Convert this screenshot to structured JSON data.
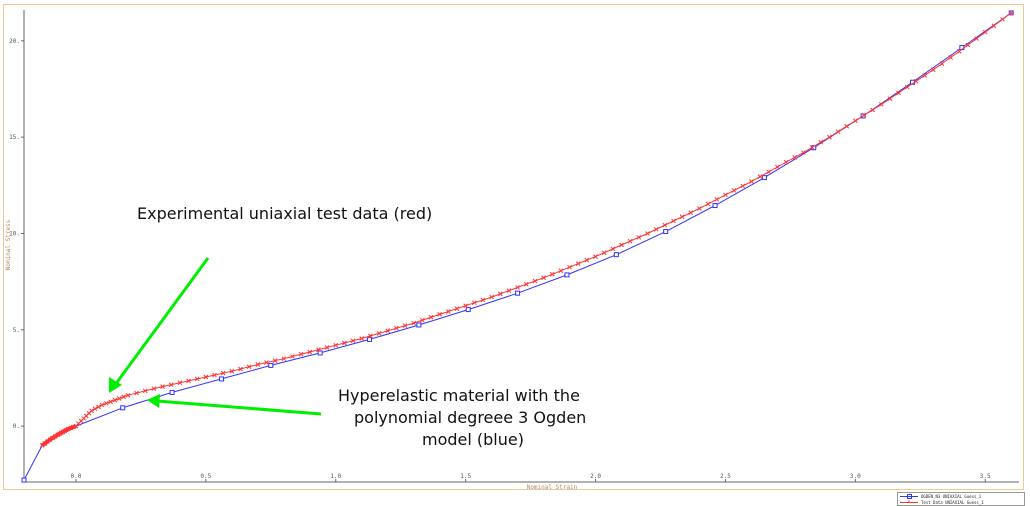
{
  "chart_data": {
    "type": "line",
    "xlabel": "Nominal Strain",
    "ylabel": "Nominal Stress",
    "xlim": [
      -0.2,
      3.63
    ],
    "ylim": [
      -2.9,
      21.6
    ],
    "x_ticks": [
      0.0,
      0.5,
      1.0,
      1.5,
      2.0,
      2.5,
      3.0,
      3.5
    ],
    "x_tick_labels": [
      "0.0",
      "0.5",
      "1.0",
      "1.5",
      "2.0",
      "2.5",
      "3.0",
      "3.5"
    ],
    "y_ticks": [
      0.0,
      5.0,
      10.0,
      15.0,
      20.0
    ],
    "y_tick_labels": [
      "0.",
      "5.",
      "10.",
      "15.",
      "20."
    ],
    "grid": false,
    "legend_position": "bottom-right",
    "series": [
      {
        "name": "OGDEN_N3 UNIAXIAL Guess_1",
        "color": "#3333ff",
        "marker": "square",
        "x": [
          -0.2,
          -0.13,
          -0.07,
          0.0,
          0.18,
          0.37,
          0.56,
          0.75,
          0.94,
          1.13,
          1.32,
          1.51,
          1.7,
          1.89,
          2.08,
          2.27,
          2.46,
          2.65,
          2.84,
          3.03,
          3.22,
          3.41,
          3.6
        ],
        "y": [
          -2.8,
          -1.0,
          -0.5,
          0.0,
          0.95,
          1.75,
          2.45,
          3.15,
          3.8,
          4.5,
          5.25,
          6.05,
          6.9,
          7.85,
          8.9,
          10.1,
          11.45,
          12.9,
          14.45,
          16.1,
          17.85,
          19.65,
          21.45
        ],
        "marker_x": [
          -0.2,
          0.18,
          0.37,
          0.56,
          0.75,
          0.94,
          1.13,
          1.32,
          1.51,
          1.7,
          1.89,
          2.08,
          2.27,
          2.46,
          2.65,
          2.84,
          3.03,
          3.22,
          3.41,
          3.6
        ],
        "marker_y": [
          -2.8,
          0.95,
          1.75,
          2.45,
          3.15,
          3.8,
          4.5,
          5.25,
          6.05,
          6.9,
          7.85,
          8.9,
          10.1,
          11.45,
          12.9,
          14.45,
          16.1,
          17.85,
          19.65,
          21.45
        ]
      },
      {
        "name": "Test Data UNIAXIAL Guess_1",
        "color": "#ff3333",
        "marker": "x",
        "x": [
          -0.13,
          -0.1,
          -0.07,
          -0.05,
          -0.03,
          0.0,
          0.03,
          0.06,
          0.1,
          0.15,
          0.2,
          0.3,
          0.4,
          0.5,
          0.6,
          0.7,
          0.8,
          0.9,
          1.0,
          1.1,
          1.2,
          1.3,
          1.4,
          1.5,
          1.6,
          1.7,
          1.8,
          1.9,
          2.0,
          2.1,
          2.2,
          2.3,
          2.4,
          2.5,
          2.6,
          2.7,
          2.8,
          2.9,
          3.0,
          3.1,
          3.2,
          3.3,
          3.4,
          3.5,
          3.6
        ],
        "y": [
          -1.0,
          -0.7,
          -0.45,
          -0.3,
          -0.15,
          0.0,
          0.4,
          0.8,
          1.1,
          1.35,
          1.6,
          1.95,
          2.25,
          2.55,
          2.85,
          3.2,
          3.5,
          3.85,
          4.2,
          4.55,
          4.95,
          5.35,
          5.8,
          6.25,
          6.7,
          7.2,
          7.7,
          8.25,
          8.8,
          9.4,
          10.0,
          10.65,
          11.3,
          12.0,
          12.7,
          13.45,
          14.2,
          15.0,
          15.85,
          16.7,
          17.6,
          18.5,
          19.45,
          20.45,
          21.45
        ]
      }
    ],
    "annotations": [
      {
        "name": "annotation-experimental",
        "lines": [
          "Experimental uniaxial test data (red)"
        ],
        "color": "#00ee00"
      },
      {
        "name": "annotation-hyperelastic",
        "lines": [
          "Hyperelastic material with the",
          "polynomial degreee 3 Ogden",
          "model (blue)"
        ],
        "color": "#00ee00"
      }
    ]
  }
}
